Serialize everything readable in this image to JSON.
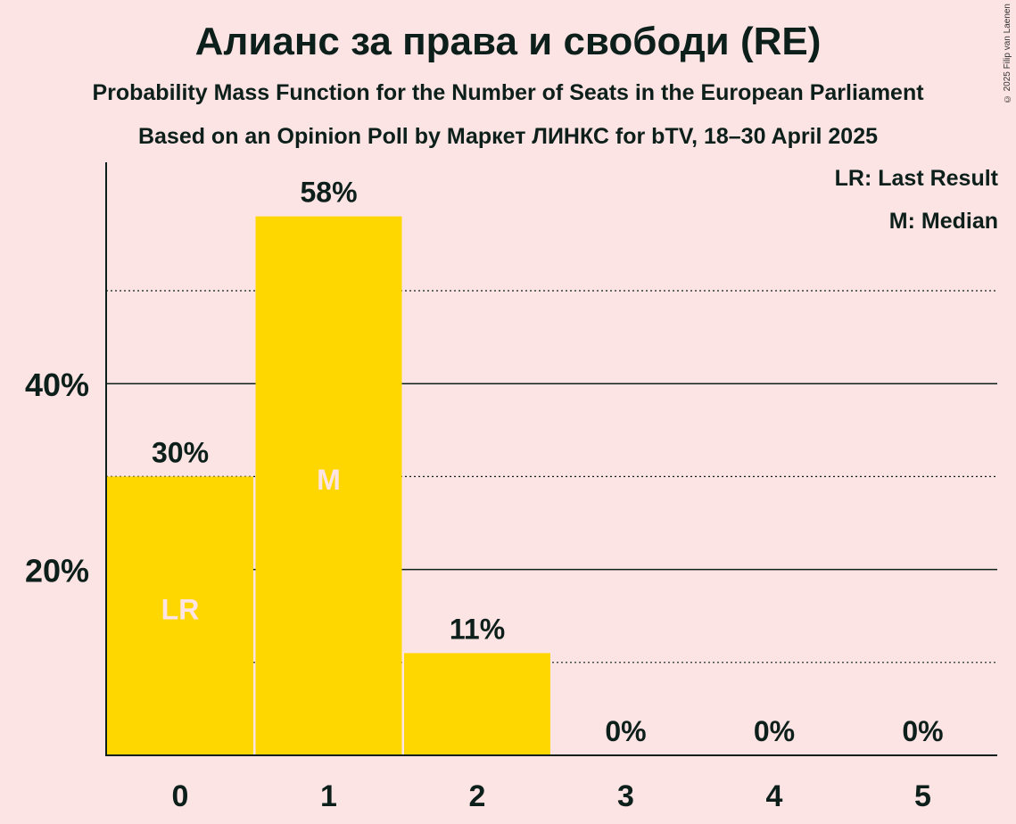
{
  "copyright": "© 2025 Filip van Laenen",
  "legend": {
    "last_result": "LR: Last Result",
    "median": "M: Median"
  },
  "colors": {
    "background": "#fde4e4",
    "bar": "#ffd700",
    "text": "#0d1f1a",
    "marker_text": "#fde4e4"
  },
  "chart_data": {
    "type": "bar",
    "title": "Алианс за права и свободи (RE)",
    "subtitle": "Probability Mass Function for the Number of Seats in the European Parliament",
    "subtitle2": "Based on an Opinion Poll by Маркет ЛИНКС for bTV, 18–30 April 2025",
    "categories": [
      "0",
      "1",
      "2",
      "3",
      "4",
      "5"
    ],
    "values": [
      30,
      58,
      11,
      0,
      0,
      0
    ],
    "value_labels": [
      "30%",
      "58%",
      "11%",
      "0%",
      "0%",
      "0%"
    ],
    "bar_markers": [
      "LR",
      "M",
      "",
      "",
      "",
      ""
    ],
    "yticks": [
      20,
      40
    ],
    "ytick_labels": [
      "20%",
      "40%"
    ],
    "ylim": [
      0,
      63
    ],
    "grid": {
      "solid": [
        20,
        40
      ],
      "dotted": [
        10,
        30,
        50
      ]
    },
    "legend_position": "top-right",
    "xlabel": "",
    "ylabel": ""
  }
}
